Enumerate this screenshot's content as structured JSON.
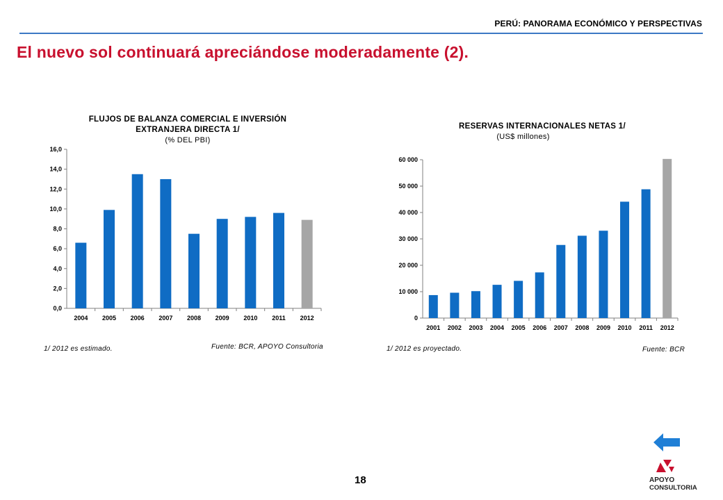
{
  "header": {
    "title": "PERÚ: PANORAMA ECONÓMICO Y PERSPECTIVAS"
  },
  "page_title": "El nuevo sol continuará apreciándose moderadamente (2).",
  "page_number": "18",
  "logo": {
    "line1": "APOYO",
    "line2": "CONSULTORIA"
  },
  "colors": {
    "bar": "#0f6cc4",
    "highlight": "#a6a6a6",
    "title_red": "#c8102e",
    "rule": "#3b78c4"
  },
  "icons": {
    "back": "arrow-left-icon"
  },
  "left_chart": {
    "title_line1": "FLUJOS DE BALANZA COMERCIAL E INVERSIÓN",
    "title_line2": "EXTRANJERA DIRECTA 1/",
    "subtitle": "(% DEL PBI)",
    "note": "1/ 2012 es estimado.",
    "source": "Fuente: BCR, APOYO Consultoria"
  },
  "right_chart": {
    "title_line1": "RESERVAS INTERNACIONALES NETAS 1/",
    "subtitle": "(US$ millones)",
    "note": "1/ 2012 es proyectado.",
    "source": "Fuente: BCR"
  },
  "chart_data": [
    {
      "type": "bar",
      "title": "FLUJOS DE BALANZA COMERCIAL E INVERSIÓN EXTRANJERA DIRECTA 1/",
      "ylabel": "(% DEL PBI)",
      "categories": [
        "2004",
        "2005",
        "2006",
        "2007",
        "2008",
        "2009",
        "2010",
        "2011",
        "2012"
      ],
      "values": [
        6.6,
        9.9,
        13.5,
        13.0,
        7.5,
        9.0,
        9.2,
        9.6,
        8.9
      ],
      "highlight_last": true,
      "ylim": [
        0,
        16
      ],
      "yticks": [
        "0,0",
        "2,0",
        "4,0",
        "6,0",
        "8,0",
        "10,0",
        "12,0",
        "14,0",
        "16,0"
      ],
      "ytick_values": [
        0,
        2,
        4,
        6,
        8,
        10,
        12,
        14,
        16
      ],
      "grid": false
    },
    {
      "type": "bar",
      "title": "RESERVAS INTERNACIONALES NETAS 1/",
      "ylabel": "(US$ millones)",
      "categories": [
        "2001",
        "2002",
        "2003",
        "2004",
        "2005",
        "2006",
        "2007",
        "2008",
        "2009",
        "2010",
        "2011",
        "2012"
      ],
      "values": [
        8700,
        9600,
        10200,
        12600,
        14100,
        17300,
        27700,
        31200,
        33100,
        44100,
        48800,
        60300
      ],
      "highlight_last": true,
      "ylim": [
        0,
        60000
      ],
      "yticks": [
        "0",
        "10 000",
        "20 000",
        "30 000",
        "40 000",
        "50 000",
        "60 000"
      ],
      "ytick_values": [
        0,
        10000,
        20000,
        30000,
        40000,
        50000,
        60000
      ],
      "grid": false
    }
  ]
}
